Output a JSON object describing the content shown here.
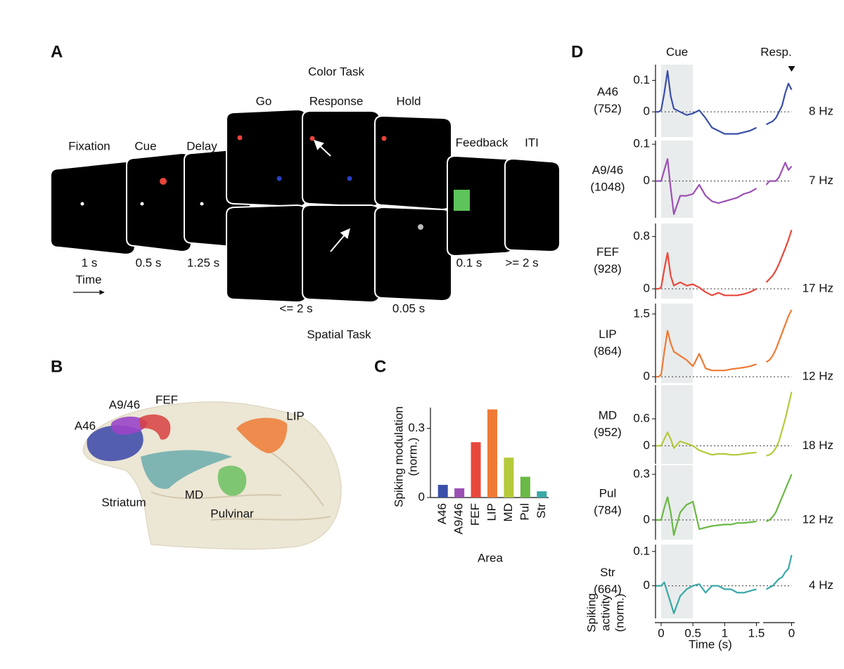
{
  "panel_a": {
    "label": "A",
    "color_task": "Color Task",
    "spatial_task": "Spatial Task",
    "time": "Time",
    "stages": [
      "Fixation",
      "Cue",
      "Delay",
      "Go",
      "Response",
      "Hold",
      "Feedback",
      "ITI"
    ],
    "durations": [
      "1 s",
      "0.5 s",
      "1.25 s",
      "<= 2 s",
      "0.05 s",
      "0.1 s",
      ">= 2 s"
    ]
  },
  "panel_b": {
    "label": "B",
    "regions": [
      "A46",
      "A9/46",
      "FEF",
      "LIP",
      "Striatum",
      "MD",
      "Pulvinar"
    ]
  },
  "panel_c": {
    "label": "C"
  },
  "panel_d": {
    "label": "D"
  },
  "chart_data": [
    {
      "type": "bar",
      "categories": [
        "A46",
        "A9/46",
        "FEF",
        "LIP",
        "MD",
        "Pul",
        "Str"
      ],
      "values": [
        0.055,
        0.04,
        0.24,
        0.382,
        0.173,
        0.09,
        0.027
      ],
      "colors": [
        "#3a4fa8",
        "#9b4fb5",
        "#e8483c",
        "#ef7a35",
        "#b5c93a",
        "#6ab845",
        "#3aa8a8"
      ],
      "ylim": [
        0,
        0.39
      ],
      "yticks": [
        0,
        0.3
      ],
      "ylabel": [
        "Spiking modulation",
        "(norm.)"
      ],
      "xlabel": "Area"
    },
    {
      "type": "line",
      "title": "A46",
      "subtitle": "(752)",
      "annotation": "8 Hz",
      "color": "#3a4fa8",
      "cue_label": "Cue",
      "resp_label": "Resp.",
      "cue_window": [
        0,
        0.5
      ],
      "ylim": [
        -0.08,
        0.15
      ],
      "yticks": [
        0,
        0.1
      ],
      "x": [
        -0.08,
        -0.04,
        0,
        0.05,
        0.1,
        0.15,
        0.2,
        0.3,
        0.4,
        0.5,
        0.6,
        0.7,
        0.8,
        0.9,
        1.0,
        1.1,
        1.2,
        1.3,
        1.4,
        1.5
      ],
      "values": [
        0,
        0,
        0.005,
        0.06,
        0.13,
        0.05,
        0.01,
        0,
        -0.01,
        -0.005,
        0.005,
        -0.02,
        -0.05,
        -0.06,
        -0.07,
        -0.07,
        -0.07,
        -0.065,
        -0.06,
        -0.05
      ],
      "resp_x": [
        -0.4,
        -0.35,
        -0.3,
        -0.25,
        -0.2,
        -0.15,
        -0.1,
        -0.05,
        0
      ],
      "resp_values": [
        -0.04,
        -0.035,
        -0.03,
        -0.02,
        0.0,
        0.02,
        0.06,
        0.09,
        0.07
      ]
    },
    {
      "type": "line",
      "title": "A9/46",
      "subtitle": "(1048)",
      "annotation": "7 Hz",
      "color": "#9b4fb5",
      "ylim": [
        -0.1,
        0.11
      ],
      "yticks": [
        0,
        0.1
      ],
      "x": [
        -0.08,
        -0.04,
        0,
        0.05,
        0.1,
        0.15,
        0.2,
        0.3,
        0.4,
        0.5,
        0.6,
        0.7,
        0.8,
        0.9,
        1.0,
        1.1,
        1.2,
        1.3,
        1.4,
        1.5
      ],
      "values": [
        0,
        0,
        0,
        0.03,
        0.06,
        -0.02,
        -0.09,
        -0.04,
        -0.04,
        -0.035,
        -0.01,
        -0.04,
        -0.055,
        -0.06,
        -0.055,
        -0.05,
        -0.045,
        -0.035,
        -0.03,
        -0.02
      ],
      "resp_x": [
        -0.4,
        -0.35,
        -0.3,
        -0.25,
        -0.2,
        -0.15,
        -0.1,
        -0.05,
        0
      ],
      "resp_values": [
        -0.01,
        0,
        0,
        0,
        0.01,
        0.03,
        0.05,
        0.03,
        0.04
      ]
    },
    {
      "type": "line",
      "title": "FEF",
      "subtitle": "(928)",
      "annotation": "17 Hz",
      "color": "#e8483c",
      "ylim": [
        -0.15,
        1.0
      ],
      "yticks": [
        0,
        0.8
      ],
      "x": [
        -0.08,
        -0.04,
        0,
        0.05,
        0.1,
        0.15,
        0.2,
        0.3,
        0.4,
        0.5,
        0.6,
        0.7,
        0.8,
        0.9,
        1.0,
        1.1,
        1.2,
        1.3,
        1.4,
        1.5
      ],
      "values": [
        0,
        0,
        0.02,
        0.3,
        0.55,
        0.2,
        0.05,
        0.1,
        0.05,
        0.07,
        0.02,
        -0.05,
        -0.1,
        -0.06,
        -0.1,
        -0.1,
        -0.1,
        -0.08,
        -0.05,
        0
      ],
      "resp_x": [
        -0.4,
        -0.35,
        -0.3,
        -0.25,
        -0.2,
        -0.15,
        -0.1,
        -0.05,
        0
      ],
      "resp_values": [
        0.1,
        0.15,
        0.2,
        0.28,
        0.38,
        0.5,
        0.62,
        0.75,
        0.9
      ]
    },
    {
      "type": "line",
      "title": "LIP",
      "subtitle": "(864)",
      "annotation": "12 Hz",
      "color": "#ef7a35",
      "ylim": [
        -0.15,
        1.75
      ],
      "yticks": [
        0,
        1.5
      ],
      "x": [
        -0.08,
        -0.04,
        0,
        0.05,
        0.1,
        0.15,
        0.2,
        0.3,
        0.4,
        0.5,
        0.6,
        0.7,
        0.8,
        0.9,
        1.0,
        1.1,
        1.2,
        1.3,
        1.4,
        1.5
      ],
      "values": [
        0,
        0,
        0.05,
        0.6,
        1.1,
        0.8,
        0.6,
        0.5,
        0.4,
        0.25,
        0.55,
        0.2,
        0.15,
        0.15,
        0.15,
        0.18,
        0.2,
        0.22,
        0.25,
        0.3
      ],
      "resp_x": [
        -0.4,
        -0.35,
        -0.3,
        -0.25,
        -0.2,
        -0.15,
        -0.1,
        -0.05,
        0
      ],
      "resp_values": [
        0.35,
        0.4,
        0.5,
        0.65,
        0.85,
        1.05,
        1.25,
        1.45,
        1.6
      ]
    },
    {
      "type": "line",
      "title": "MD",
      "subtitle": "(952)",
      "annotation": "18 Hz",
      "color": "#b5c93a",
      "ylim": [
        -0.4,
        1.35
      ],
      "yticks": [
        0,
        0.6
      ],
      "x": [
        -0.08,
        -0.04,
        0,
        0.05,
        0.1,
        0.15,
        0.2,
        0.3,
        0.4,
        0.5,
        0.6,
        0.7,
        0.8,
        0.9,
        1.0,
        1.1,
        1.2,
        1.3,
        1.4,
        1.5
      ],
      "values": [
        0,
        0,
        0,
        0.15,
        0.3,
        0.15,
        -0.05,
        0.1,
        0.05,
        0,
        -0.1,
        -0.15,
        -0.2,
        -0.18,
        -0.18,
        -0.2,
        -0.2,
        -0.18,
        -0.16,
        -0.15
      ],
      "resp_x": [
        -0.4,
        -0.35,
        -0.3,
        -0.25,
        -0.2,
        -0.15,
        -0.1,
        -0.05,
        0
      ],
      "resp_values": [
        -0.22,
        -0.2,
        -0.15,
        -0.05,
        0.1,
        0.35,
        0.6,
        0.9,
        1.2
      ]
    },
    {
      "type": "line",
      "title": "Pul",
      "subtitle": "(784)",
      "annotation": "12 Hz",
      "color": "#6ab845",
      "ylim": [
        -0.13,
        0.36
      ],
      "yticks": [
        0,
        0.3
      ],
      "x": [
        -0.08,
        -0.04,
        0,
        0.05,
        0.1,
        0.15,
        0.2,
        0.3,
        0.4,
        0.5,
        0.6,
        0.7,
        0.8,
        0.9,
        1.0,
        1.1,
        1.2,
        1.3,
        1.4,
        1.5
      ],
      "values": [
        0,
        0,
        0,
        0.08,
        0.15,
        0.05,
        -0.1,
        0.05,
        0.1,
        0.12,
        -0.06,
        -0.05,
        -0.04,
        -0.035,
        -0.03,
        -0.03,
        -0.02,
        -0.02,
        -0.015,
        -0.01
      ],
      "resp_x": [
        -0.4,
        -0.35,
        -0.3,
        -0.25,
        -0.2,
        -0.15,
        -0.1,
        -0.05,
        0
      ],
      "resp_values": [
        -0.01,
        0,
        0.02,
        0.05,
        0.1,
        0.15,
        0.2,
        0.25,
        0.3
      ]
    },
    {
      "type": "line",
      "title": "Str",
      "subtitle": "(664)",
      "annotation": "4 Hz",
      "color": "#3aa8a8",
      "ylim": [
        -0.095,
        0.12
      ],
      "yticks": [
        0,
        0.1
      ],
      "x": [
        -0.08,
        -0.04,
        0,
        0.05,
        0.1,
        0.15,
        0.2,
        0.3,
        0.4,
        0.5,
        0.6,
        0.7,
        0.8,
        0.9,
        1.0,
        1.1,
        1.2,
        1.3,
        1.4,
        1.5
      ],
      "values": [
        0,
        0,
        0,
        0.01,
        -0.02,
        -0.05,
        -0.08,
        -0.03,
        -0.01,
        0,
        0.005,
        -0.02,
        0,
        0,
        -0.01,
        -0.01,
        -0.02,
        -0.02,
        -0.015,
        -0.01
      ],
      "resp_x": [
        -0.4,
        -0.35,
        -0.3,
        -0.25,
        -0.2,
        -0.15,
        -0.1,
        -0.05,
        0
      ],
      "resp_values": [
        -0.01,
        -0.005,
        0,
        0.01,
        0.02,
        0.025,
        0.04,
        0.05,
        0.09
      ],
      "xlim": [
        -0.1,
        1.55
      ],
      "xticks": [
        0,
        0.5,
        1,
        1.5
      ],
      "resp_xlim": [
        -0.45,
        0.05
      ],
      "resp_xticks": [
        0
      ],
      "xlabel": "Time (s)",
      "ylabel": [
        "Spiking",
        "activity",
        "(norm.)"
      ]
    }
  ]
}
